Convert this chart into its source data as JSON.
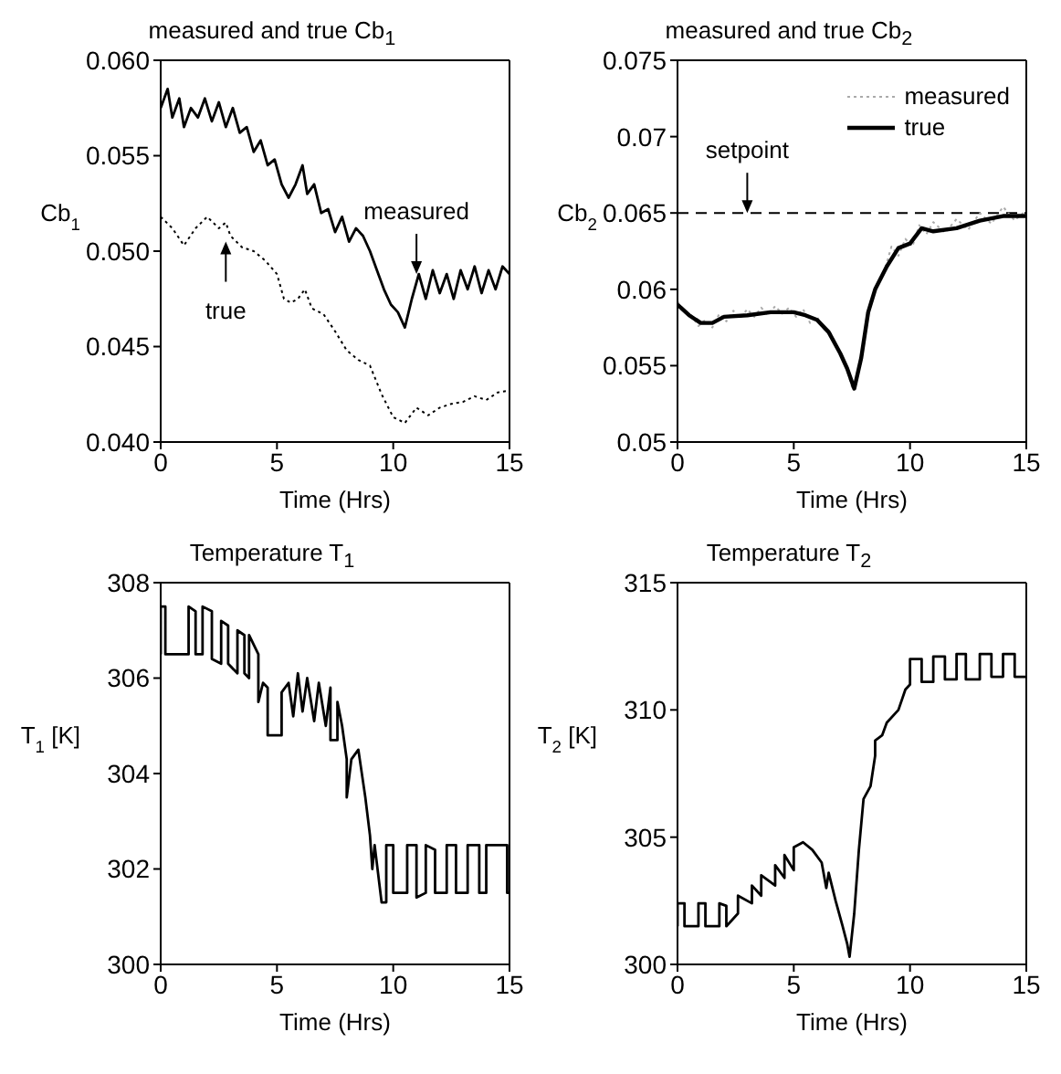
{
  "chart_data": [
    {
      "type": "line",
      "title": "measured and true Cb$_{1}$",
      "xlabel": "Time (Hrs)",
      "ylabel": "Cb$_{1}$",
      "xlim": [
        0,
        15
      ],
      "xticks": [
        0,
        5,
        10,
        15
      ],
      "ylim": [
        0.04,
        0.06
      ],
      "yticks": [
        {
          "value": 0.04,
          "label": "0.040"
        },
        0.045,
        {
          "value": 0.05,
          "label": "0.050"
        },
        0.055,
        {
          "value": 0.06,
          "label": "0.060"
        }
      ],
      "series": [
        {
          "color": "#000000",
          "line_style": "solid",
          "x": [
            0,
            0.3,
            0.5,
            0.8,
            1,
            1.3,
            1.6,
            1.9,
            2.2,
            2.5,
            2.8,
            3.1,
            3.4,
            3.7,
            4,
            4.3,
            4.6,
            4.9,
            5.2,
            5.5,
            5.8,
            6.1,
            6.3,
            6.6,
            6.9,
            7.2,
            7.5,
            7.8,
            8.1,
            8.4,
            8.7,
            9,
            9.3,
            9.6,
            9.9,
            10.2,
            10.5,
            10.8,
            11.1,
            11.4,
            11.7,
            12,
            12.3,
            12.6,
            12.9,
            13.2,
            13.5,
            13.8,
            14.1,
            14.4,
            14.7,
            15
          ],
          "values": [
            0.0575,
            0.0585,
            0.057,
            0.058,
            0.0565,
            0.0575,
            0.057,
            0.058,
            0.0568,
            0.0578,
            0.0565,
            0.0575,
            0.0562,
            0.0565,
            0.0552,
            0.0558,
            0.0545,
            0.0548,
            0.0535,
            0.0528,
            0.0535,
            0.0545,
            0.053,
            0.0535,
            0.052,
            0.0522,
            0.051,
            0.0518,
            0.0505,
            0.0512,
            0.0508,
            0.05,
            0.049,
            0.048,
            0.0472,
            0.0468,
            0.046,
            0.0475,
            0.0488,
            0.0475,
            0.049,
            0.0478,
            0.0488,
            0.0475,
            0.049,
            0.048,
            0.0492,
            0.0478,
            0.049,
            0.048,
            0.0492,
            0.0488
          ]
        },
        {
          "color": "#000000",
          "line_style": "dotted",
          "x": [
            0,
            0.5,
            1,
            1.5,
            2,
            2.5,
            2.8,
            3,
            3.5,
            4,
            4.5,
            5,
            5.3,
            5.6,
            5.9,
            6.2,
            6.5,
            7,
            7.5,
            8,
            8.5,
            9,
            9.5,
            10,
            10.5,
            11,
            11.5,
            12,
            12.5,
            13,
            13.5,
            14,
            14.5,
            15
          ],
          "values": [
            0.0518,
            0.0512,
            0.0503,
            0.0512,
            0.0518,
            0.0512,
            0.0515,
            0.0508,
            0.0502,
            0.05,
            0.0495,
            0.0488,
            0.0475,
            0.0473,
            0.0475,
            0.048,
            0.047,
            0.0467,
            0.0458,
            0.0448,
            0.0443,
            0.044,
            0.0425,
            0.0413,
            0.041,
            0.0418,
            0.0414,
            0.0418,
            0.042,
            0.0421,
            0.0424,
            0.0422,
            0.0426,
            0.0427
          ]
        }
      ],
      "annotations": [
        {
          "text": "measured",
          "x": 11,
          "y": 0.0488
        },
        {
          "text": "true",
          "x": 2.8,
          "y": 0.0505
        }
      ]
    },
    {
      "type": "line",
      "title": "measured and true Cb$_{2}$",
      "xlabel": "Time (Hrs)",
      "ylabel": "Cb$_{2}$",
      "xlim": [
        0,
        15
      ],
      "xticks": [
        0,
        5,
        10,
        15
      ],
      "ylim": [
        0.05,
        0.075
      ],
      "yticks": [
        0.05,
        0.055,
        0.06,
        0.065,
        0.07,
        0.075
      ],
      "legend": "top right",
      "series": [
        {
          "name": "measured",
          "color": "#aaaaaa",
          "line_style": "dotted",
          "x": [
            0,
            0.3,
            0.6,
            0.9,
            1.2,
            1.5,
            1.8,
            2.1,
            2.4,
            2.7,
            3,
            3.3,
            3.6,
            3.9,
            4.2,
            4.5,
            4.8,
            5.1,
            5.4,
            5.7,
            6,
            6.3,
            6.6,
            6.9,
            7.2,
            7.5,
            7.7,
            8,
            8.3,
            8.6,
            8.9,
            9.2,
            9.5,
            9.8,
            10.1,
            10.4,
            10.7,
            11,
            11.5,
            12,
            12.5,
            13,
            13.5,
            14,
            14.5,
            15
          ],
          "values": [
            0.0592,
            0.0586,
            0.0583,
            0.0576,
            0.058,
            0.0575,
            0.0584,
            0.0579,
            0.0586,
            0.0581,
            0.0587,
            0.0582,
            0.0588,
            0.0583,
            0.0589,
            0.0584,
            0.0588,
            0.0582,
            0.0587,
            0.0578,
            0.0582,
            0.0574,
            0.0571,
            0.056,
            0.0552,
            0.0536,
            0.054,
            0.0565,
            0.0592,
            0.0603,
            0.0612,
            0.0628,
            0.0622,
            0.0633,
            0.0628,
            0.0642,
            0.0636,
            0.0644,
            0.0637,
            0.0646,
            0.0639,
            0.065,
            0.0643,
            0.0654,
            0.0645,
            0.0652
          ]
        },
        {
          "name": "true",
          "color": "#000000",
          "line_style": "solid",
          "x": [
            0,
            0.5,
            1,
            1.5,
            2,
            3,
            4,
            5,
            5.5,
            6,
            6.5,
            7,
            7.3,
            7.6,
            7.9,
            8.2,
            8.5,
            9,
            9.5,
            10,
            10.5,
            11,
            12,
            13,
            14,
            15
          ],
          "values": [
            0.059,
            0.0583,
            0.0578,
            0.0578,
            0.0582,
            0.0583,
            0.0585,
            0.0585,
            0.0583,
            0.058,
            0.0572,
            0.0558,
            0.0548,
            0.0535,
            0.0555,
            0.0585,
            0.06,
            0.0615,
            0.0627,
            0.063,
            0.064,
            0.0638,
            0.064,
            0.0645,
            0.0648,
            0.0648
          ]
        }
      ],
      "ref_lines": [
        {
          "axis": "y",
          "value": 0.065,
          "line_style": "dashed",
          "color": "#000000"
        }
      ],
      "annotations": [
        {
          "text": "setpoint",
          "x": 3,
          "y": 0.065
        }
      ]
    },
    {
      "type": "line",
      "title": "Temperature T$_{1}$",
      "xlabel": "Time (Hrs)",
      "ylabel": "T$_{1}$ [K]",
      "xlim": [
        0,
        15
      ],
      "xticks": [
        0,
        5,
        10,
        15
      ],
      "ylim": [
        300,
        308
      ],
      "yticks": [
        300,
        302,
        304,
        306,
        308
      ],
      "series": [
        {
          "color": "#000000",
          "line_style": "solid",
          "x": [
            0,
            0,
            0.2,
            0.2,
            1.2,
            1.2,
            1.5,
            1.5,
            1.8,
            1.8,
            2.2,
            2.2,
            2.6,
            2.6,
            2.9,
            2.9,
            3.3,
            3.3,
            3.6,
            3.6,
            3.8,
            3.8,
            4.2,
            4.2,
            4.4,
            4.6,
            4.6,
            5.2,
            5.2,
            5.5,
            5.7,
            5.9,
            6.1,
            6.3,
            6.6,
            6.8,
            7.1,
            7.3,
            7.3,
            7.6,
            7.6,
            7.8,
            8,
            8,
            8.2,
            8.5,
            8.8,
            9,
            9.1,
            9.2,
            9.5,
            9.7,
            9.7,
            10,
            10,
            10.6,
            10.6,
            11,
            11,
            11.4,
            11.4,
            11.8,
            11.8,
            12.3,
            12.3,
            12.7,
            12.7,
            13.2,
            13.2,
            13.7,
            13.7,
            14,
            14,
            14.9,
            14.9,
            15
          ],
          "values": [
            306.5,
            307.5,
            307.5,
            306.5,
            306.5,
            307.5,
            307.4,
            306.5,
            306.5,
            307.5,
            307.4,
            306.4,
            306.3,
            307.2,
            307.1,
            306.3,
            306.1,
            307,
            306.9,
            306.1,
            306,
            306.9,
            306.5,
            305.5,
            305.9,
            305.8,
            304.8,
            304.8,
            305.7,
            305.9,
            305.2,
            306.1,
            305.3,
            306,
            305.1,
            305.9,
            305,
            305.8,
            304.7,
            304.7,
            305.5,
            305,
            304.3,
            303.5,
            304.3,
            304.5,
            303.5,
            302.7,
            302,
            302.5,
            301.3,
            301.3,
            302.5,
            302.5,
            301.5,
            301.5,
            302.5,
            302.5,
            301.4,
            301.5,
            302.5,
            302.4,
            301.5,
            301.5,
            302.5,
            302.5,
            301.5,
            301.5,
            302.5,
            302.5,
            301.5,
            301.5,
            302.5,
            302.5,
            301.5,
            301.5
          ]
        }
      ]
    },
    {
      "type": "line",
      "title": "Temperature T$_{2}$",
      "xlabel": "Time (Hrs)",
      "ylabel": "T$_{2}$ [K]",
      "xlim": [
        0,
        15
      ],
      "xticks": [
        0,
        5,
        10,
        15
      ],
      "ylim": [
        300,
        315
      ],
      "yticks": [
        300,
        305,
        310,
        315
      ],
      "series": [
        {
          "color": "#000000",
          "line_style": "solid",
          "x": [
            0,
            0,
            0.3,
            0.3,
            0.9,
            0.9,
            1.2,
            1.2,
            1.8,
            1.8,
            2.1,
            2.1,
            2.6,
            2.6,
            3.2,
            3.2,
            3.6,
            3.6,
            4.2,
            4.2,
            4.6,
            4.6,
            5,
            5,
            5.4,
            5.8,
            6.2,
            6.4,
            6.5,
            6.8,
            7.1,
            7.3,
            7.4,
            7.6,
            7.8,
            8,
            8.3,
            8.5,
            8.5,
            8.8,
            9,
            9.5,
            9.8,
            10,
            10,
            10.5,
            10.5,
            11,
            11,
            11.5,
            11.5,
            12,
            12,
            12.4,
            12.4,
            13,
            13,
            13.5,
            13.5,
            14,
            14,
            14.5,
            14.5,
            15
          ],
          "values": [
            301.5,
            302.4,
            302.4,
            301.5,
            301.5,
            302.4,
            302.4,
            301.5,
            301.5,
            302.4,
            302.3,
            301.5,
            302,
            302.7,
            302.4,
            303.1,
            302.7,
            303.5,
            303.1,
            303.9,
            303.4,
            304.3,
            303.7,
            304.6,
            304.8,
            304.5,
            304,
            303,
            303.6,
            302.5,
            301.5,
            300.8,
            300.3,
            302,
            304.5,
            306.5,
            307,
            308.2,
            308.8,
            309,
            309.5,
            310,
            310.8,
            311,
            312,
            312,
            311.1,
            311.1,
            312.1,
            312.1,
            311.2,
            311.2,
            312.2,
            312.2,
            311.2,
            311.2,
            312.2,
            312.2,
            311.3,
            311.3,
            312.2,
            312.2,
            311.3,
            311.3
          ]
        }
      ]
    }
  ]
}
